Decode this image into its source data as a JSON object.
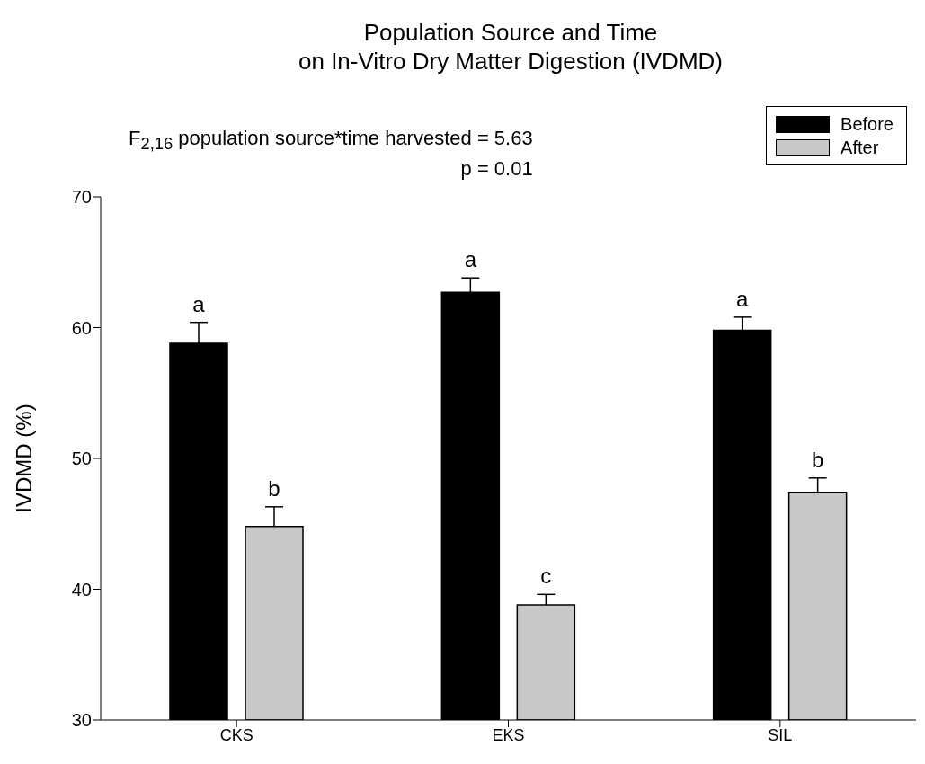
{
  "chart_data": {
    "type": "bar",
    "title": "Population Source and Time\non In-Vitro Dry Matter Digestion (IVDMD)",
    "ylabel": "IVDMD (%)",
    "categories": [
      "CKS",
      "EKS",
      "SIL"
    ],
    "series": [
      {
        "name": "Before",
        "color": "#000000",
        "values": [
          58.8,
          62.7,
          59.8
        ],
        "errors": [
          1.6,
          1.1,
          1.0
        ],
        "value_labels": [
          "a",
          "a",
          "a"
        ]
      },
      {
        "name": "After",
        "color": "#c8c8c8",
        "values": [
          44.8,
          38.8,
          47.4
        ],
        "errors": [
          1.5,
          0.8,
          1.1
        ],
        "value_labels": [
          "b",
          "c",
          "b"
        ]
      }
    ],
    "ylim": [
      30,
      70
    ],
    "yticks": [
      30,
      40,
      50,
      60,
      70
    ],
    "grid": false,
    "legend": "top right",
    "annotations": [
      "F$_{2,16}$ population source*time harvested = 5.63",
      "p = 0.01"
    ]
  }
}
